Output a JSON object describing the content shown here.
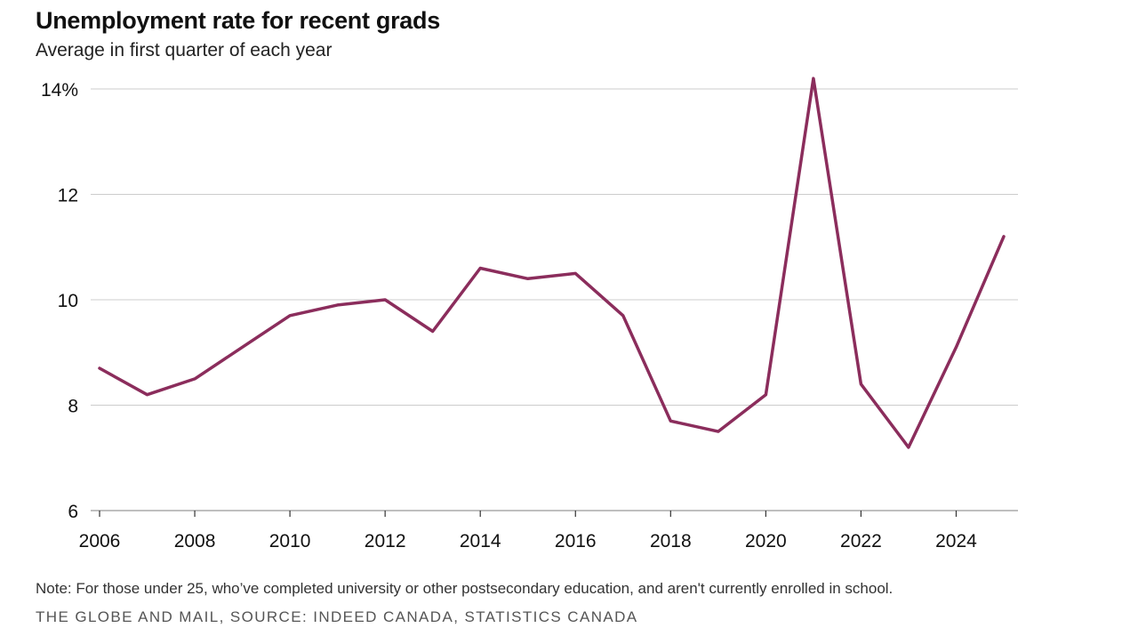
{
  "header": {
    "title": "Unemployment rate for recent grads",
    "subtitle": "Average in first quarter of each year"
  },
  "footer": {
    "note": "Note: For those under 25, who’ve completed university or other postsecondary education, and aren't currently enrolled in school.",
    "source": "THE GLOBE AND MAIL, SOURCE: INDEED CANADA, STATISTICS CANADA"
  },
  "colors": {
    "line": "#8b2d5c",
    "grid": "#cccccc",
    "axis": "#999999"
  },
  "chart_data": {
    "type": "line",
    "title": "Unemployment rate for recent grads",
    "subtitle": "Average in first quarter of each year",
    "xlabel": "",
    "ylabel": "",
    "xlim": [
      2006,
      2025
    ],
    "ylim": [
      6,
      14
    ],
    "grid": true,
    "x_ticks": [
      2006,
      2008,
      2010,
      2012,
      2014,
      2016,
      2018,
      2020,
      2022,
      2024
    ],
    "x_tick_labels": [
      "2006",
      "2008",
      "2010",
      "2012",
      "2014",
      "2016",
      "2018",
      "2020",
      "2022",
      "2024"
    ],
    "y_ticks": [
      6,
      8,
      10,
      12,
      14
    ],
    "y_tick_labels": [
      "6",
      "8",
      "10",
      "12",
      "14%"
    ],
    "series": [
      {
        "name": "Unemployment rate for recent grads",
        "x": [
          2006,
          2007,
          2008,
          2009,
          2010,
          2011,
          2012,
          2013,
          2014,
          2015,
          2016,
          2017,
          2018,
          2019,
          2020,
          2021,
          2022,
          2023,
          2024,
          2025
        ],
        "values": [
          8.7,
          8.2,
          8.5,
          9.1,
          9.7,
          9.9,
          10.0,
          9.4,
          10.6,
          10.4,
          10.5,
          9.7,
          7.7,
          7.5,
          8.2,
          14.2,
          8.4,
          7.2,
          9.1,
          11.2
        ]
      }
    ]
  }
}
